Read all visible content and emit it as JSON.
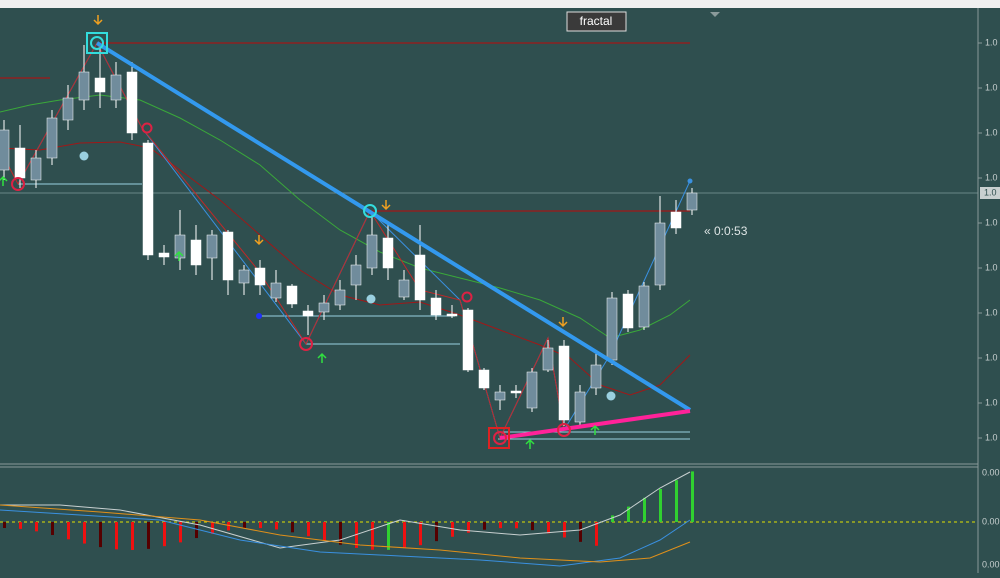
{
  "button": {
    "label": "fractal"
  },
  "timer": {
    "label": "« 0:0:53"
  },
  "price_axis": {
    "labels": [
      "1.0",
      "1.0",
      "1.0",
      "1.0",
      "1.0",
      "1.0",
      "1.0",
      "1.0",
      "1.0",
      "1.0"
    ],
    "current": "1.0"
  },
  "indicator_axis": {
    "labels": [
      "0.00",
      "0.00",
      "0.00"
    ]
  }
}
